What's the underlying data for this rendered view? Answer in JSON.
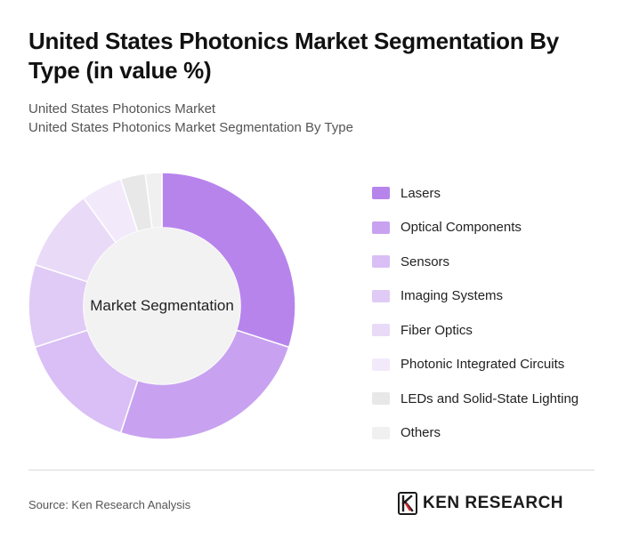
{
  "title": "United States Photonics Market Segmentation By Type (in value %)",
  "subtitle_1": "United States Photonics Market",
  "subtitle_2": "United States Photonics Market Segmentation By Type",
  "chart_data": {
    "type": "pie",
    "center_label": "Market Segmentation",
    "categories": [
      "Lasers",
      "Optical Components",
      "Sensors",
      "Imaging Systems",
      "Fiber Optics",
      "Photonic Integrated Circuits",
      "LEDs and Solid-State Lighting",
      "Others"
    ],
    "values": [
      30,
      25,
      15,
      10,
      10,
      5,
      3,
      2
    ],
    "colors": [
      "#b784ec",
      "#c8a2f0",
      "#d9bff5",
      "#e0cbf6",
      "#e9dbf8",
      "#f2eafb",
      "#e8e8e8",
      "#f0f0f0"
    ],
    "legend_position": "right"
  },
  "footer": {
    "source": "Source: Ken Research Analysis",
    "logo_text": "KEN RESEARCH"
  }
}
